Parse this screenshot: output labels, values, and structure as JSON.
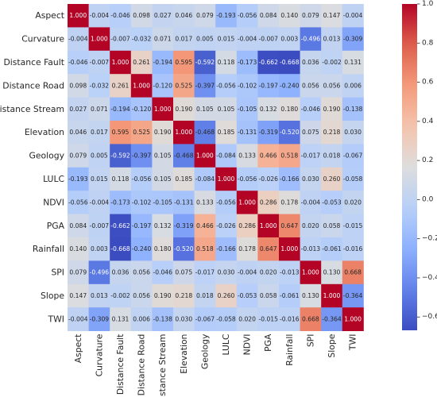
{
  "chart_data": {
    "type": "heatmap",
    "title": "",
    "xlabel": "",
    "ylabel": "",
    "labels": [
      "Aspect",
      "Curvature",
      "Distance Fault",
      "Distance Road",
      "Distance Stream",
      "Elevation",
      "Geology",
      "LULC",
      "NDVI",
      "PGA",
      "Rainfall",
      "SPI",
      "Slope",
      "TWI"
    ],
    "matrix": [
      [
        1.0,
        -0.004,
        -0.046,
        0.098,
        0.027,
        0.046,
        0.079,
        -0.193,
        -0.056,
        0.084,
        0.14,
        0.079,
        0.147,
        -0.004
      ],
      [
        -0.004,
        1.0,
        -0.007,
        -0.032,
        0.071,
        0.017,
        0.005,
        0.015,
        -0.004,
        -0.007,
        0.003,
        -0.496,
        0.013,
        -0.309
      ],
      [
        -0.046,
        -0.007,
        1.0,
        0.261,
        -0.194,
        0.595,
        -0.592,
        0.118,
        -0.173,
        -0.662,
        -0.668,
        0.036,
        -0.002,
        0.131
      ],
      [
        0.098,
        -0.032,
        0.261,
        1.0,
        -0.12,
        0.525,
        -0.397,
        -0.056,
        -0.102,
        -0.197,
        -0.24,
        0.056,
        0.056,
        0.006
      ],
      [
        0.027,
        0.071,
        -0.194,
        -0.12,
        1.0,
        0.19,
        0.105,
        0.105,
        -0.105,
        0.132,
        0.18,
        -0.046,
        0.19,
        -0.138
      ],
      [
        0.046,
        0.017,
        0.595,
        0.525,
        0.19,
        1.0,
        -0.468,
        0.185,
        -0.131,
        -0.319,
        -0.52,
        0.075,
        0.218,
        0.03
      ],
      [
        0.079,
        0.005,
        -0.592,
        -0.397,
        0.105,
        -0.468,
        1.0,
        -0.084,
        0.133,
        0.466,
        0.518,
        -0.017,
        0.018,
        -0.067
      ],
      [
        -0.193,
        0.015,
        0.118,
        -0.056,
        0.105,
        0.185,
        -0.084,
        1.0,
        -0.056,
        -0.026,
        -0.166,
        0.03,
        0.26,
        -0.058
      ],
      [
        -0.056,
        -0.004,
        -0.173,
        -0.102,
        -0.105,
        -0.131,
        0.133,
        -0.056,
        1.0,
        0.286,
        0.178,
        -0.004,
        -0.053,
        0.02
      ],
      [
        0.084,
        -0.007,
        -0.662,
        -0.197,
        0.132,
        -0.319,
        0.466,
        -0.026,
        0.286,
        1.0,
        0.647,
        0.02,
        0.058,
        -0.015
      ],
      [
        0.14,
        0.003,
        -0.668,
        -0.24,
        0.18,
        -0.52,
        0.518,
        -0.166,
        0.178,
        0.647,
        1.0,
        -0.013,
        -0.061,
        -0.016
      ],
      [
        0.079,
        -0.496,
        0.036,
        0.056,
        -0.046,
        0.075,
        -0.017,
        0.03,
        -0.004,
        0.02,
        -0.013,
        1.0,
        0.13,
        0.668
      ],
      [
        0.147,
        0.013,
        -0.002,
        0.056,
        0.19,
        0.218,
        0.018,
        0.26,
        -0.053,
        0.058,
        -0.061,
        0.13,
        1.0,
        -0.364
      ],
      [
        -0.004,
        -0.309,
        0.131,
        0.006,
        -0.138,
        0.03,
        -0.067,
        -0.058,
        0.02,
        -0.015,
        -0.016,
        0.668,
        -0.364,
        1.0
      ]
    ],
    "value_format": "3 decimals",
    "colorscale": "coolwarm",
    "vmin": -0.668,
    "vmax": 1.0,
    "colorbar": {
      "ticks": [
        1.0,
        0.8,
        0.6,
        0.4,
        0.2,
        0.0,
        -0.2,
        -0.4,
        -0.6
      ],
      "tick_labels": [
        "1.0",
        "0.8",
        "0.6",
        "0.4",
        "0.2",
        "0.0",
        "−0.2",
        "−0.4",
        "−0.6"
      ],
      "placement": "right"
    },
    "grid": false,
    "legend": "none"
  }
}
